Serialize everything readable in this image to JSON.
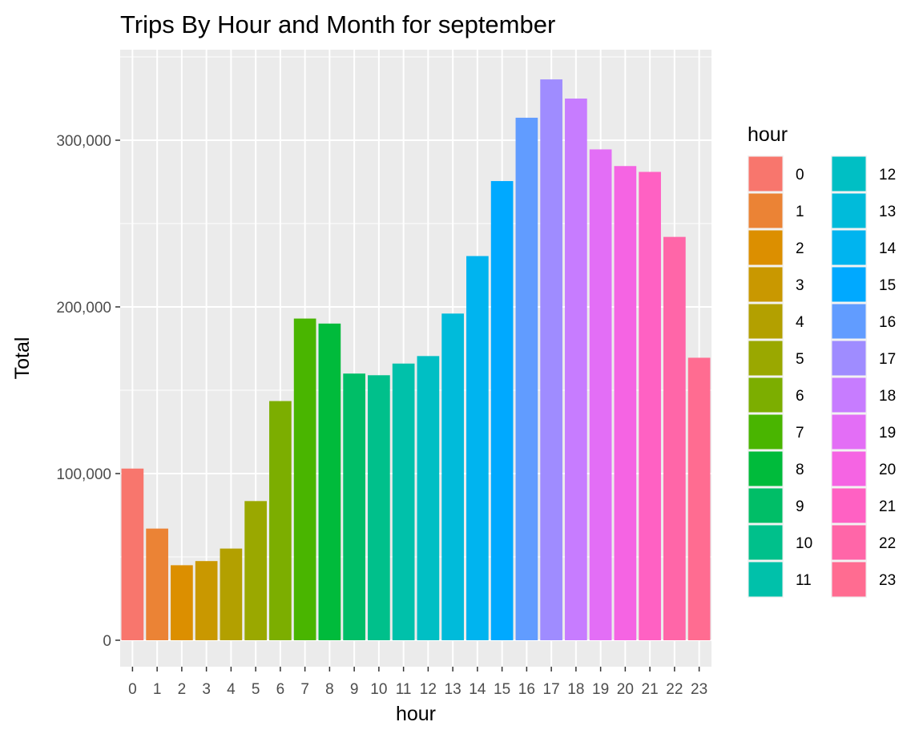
{
  "chart_data": {
    "type": "bar",
    "title": "Trips By Hour and Month for september",
    "xlabel": "hour",
    "ylabel": "Total",
    "categories": [
      "0",
      "1",
      "2",
      "3",
      "4",
      "5",
      "6",
      "7",
      "8",
      "9",
      "10",
      "11",
      "12",
      "13",
      "14",
      "15",
      "16",
      "17",
      "18",
      "19",
      "20",
      "21",
      "22",
      "23"
    ],
    "values": [
      103000,
      67000,
      45000,
      47500,
      55000,
      83500,
      143500,
      193000,
      190000,
      160000,
      159000,
      166000,
      170500,
      196000,
      230500,
      275500,
      313500,
      336500,
      325000,
      294500,
      284500,
      281000,
      242000,
      169500
    ],
    "ylim": [
      0,
      350000
    ],
    "yticks": [
      0,
      100000,
      200000,
      300000
    ],
    "ytick_labels": [
      "0",
      "100,000",
      "200,000",
      "300,000"
    ],
    "grid": true,
    "legend": {
      "title": "hour",
      "placement": "right",
      "columns": 2,
      "entries": [
        "0",
        "1",
        "2",
        "3",
        "4",
        "5",
        "6",
        "7",
        "8",
        "9",
        "10",
        "11",
        "12",
        "13",
        "14",
        "15",
        "16",
        "17",
        "18",
        "19",
        "20",
        "21",
        "22",
        "23"
      ]
    },
    "colors": [
      "#F8766D",
      "#EB8335",
      "#DC8F00",
      "#C99800",
      "#B3A000",
      "#9AA800",
      "#7CAE00",
      "#49B500",
      "#00BB3B",
      "#00BE67",
      "#00C08B",
      "#00C1AA",
      "#00BFC4",
      "#00BBDA",
      "#00B4EF",
      "#00A9FF",
      "#619CFF",
      "#9F8CFF",
      "#C77CFF",
      "#E36EF6",
      "#F564E3",
      "#FF61C3",
      "#FF66A8",
      "#FF6C91"
    ]
  }
}
